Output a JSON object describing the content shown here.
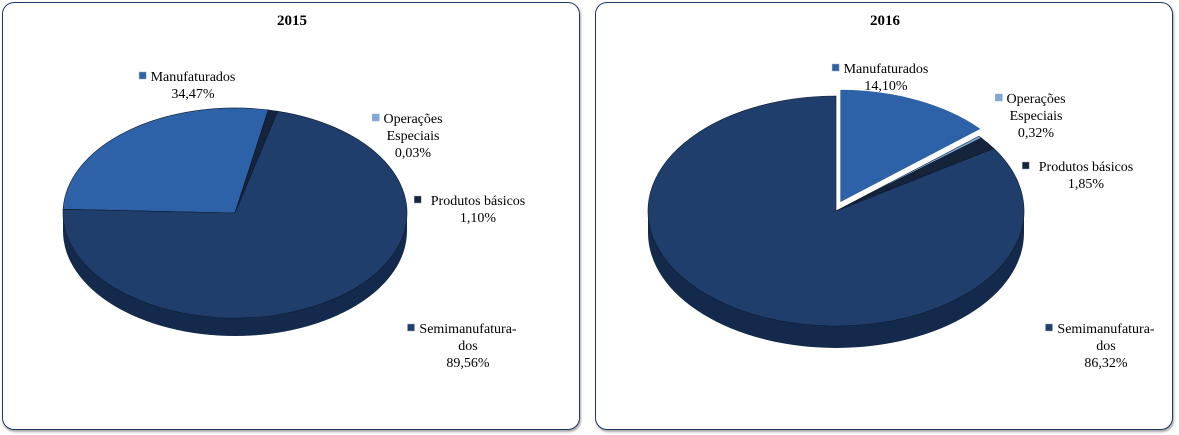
{
  "chart_data": [
    {
      "type": "pie",
      "title": "2015",
      "slices": [
        {
          "key": "manuf",
          "label_lines": [
            "Manufaturados"
          ],
          "value_label": "34,47%",
          "value": 34.47
        },
        {
          "key": "oper",
          "label_lines": [
            "Operações",
            "Especiais"
          ],
          "value_label": "0,03%",
          "value": 0.03
        },
        {
          "key": "prod",
          "label_lines": [
            "Produtos básicos"
          ],
          "value_label": "1,10%",
          "value": 1.1
        },
        {
          "key": "semi",
          "label_lines": [
            "Semimanufatura-",
            "dos"
          ],
          "value_label": "89,56%",
          "value": 89.56
        }
      ]
    },
    {
      "type": "pie",
      "title": "2016",
      "slices": [
        {
          "key": "manuf",
          "label_lines": [
            "Manufaturados"
          ],
          "value_label": "14,10%",
          "value": 14.1
        },
        {
          "key": "oper",
          "label_lines": [
            "Operações",
            "Especiais"
          ],
          "value_label": "0,32%",
          "value": 0.32
        },
        {
          "key": "prod",
          "label_lines": [
            "Produtos básicos"
          ],
          "value_label": "1,85%",
          "value": 1.85
        },
        {
          "key": "semi",
          "label_lines": [
            "Semimanufatura-",
            "dos"
          ],
          "value_label": "86,32%",
          "value": 86.32
        }
      ]
    }
  ],
  "colors": {
    "manuf": "#2e62a8",
    "oper": "#7fa8d8",
    "prod": "#15243a",
    "semi": "#1f3e6b",
    "semi_side": "#142a4c",
    "manuf_side": "#1e4580"
  }
}
